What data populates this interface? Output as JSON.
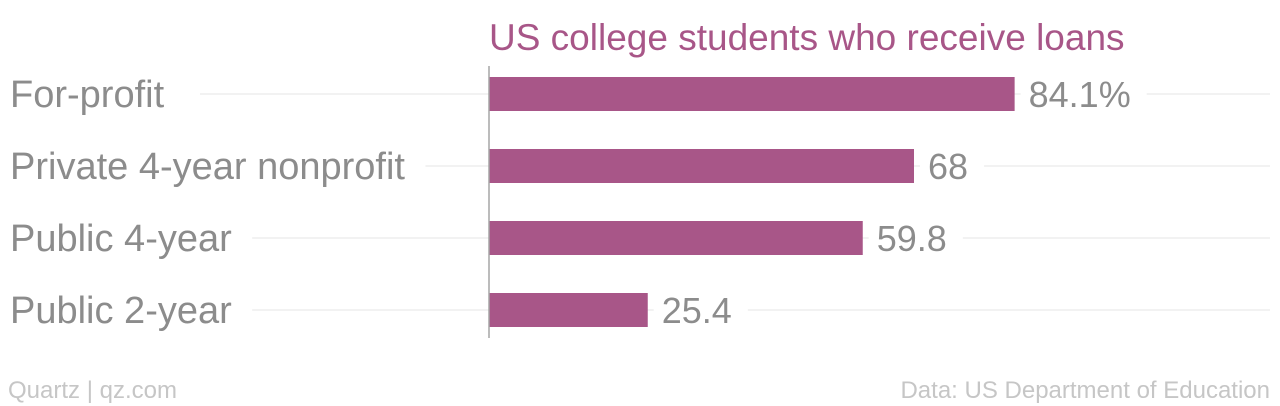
{
  "chart_data": {
    "type": "bar",
    "orientation": "horizontal",
    "title": "US college students who receive loans",
    "categories": [
      "For-profit",
      "Private 4-year nonprofit",
      "Public 4-year",
      "Public 2-year"
    ],
    "values": [
      84.1,
      68,
      59.8,
      25.4
    ],
    "value_labels": [
      "84.1%",
      "68",
      "59.8",
      "25.4"
    ],
    "xlim": [
      0,
      100
    ],
    "grid": true,
    "legend": "none"
  },
  "footer": {
    "source_left": "Quartz | qz.com",
    "source_right": "Data: US Department of Education"
  },
  "colors": {
    "bar": "#a85688",
    "title": "#a85688",
    "label": "#8c8c8c",
    "footer": "#c6c6c6",
    "grid": "#e6e6e6",
    "axis": "#a5a5a5"
  }
}
